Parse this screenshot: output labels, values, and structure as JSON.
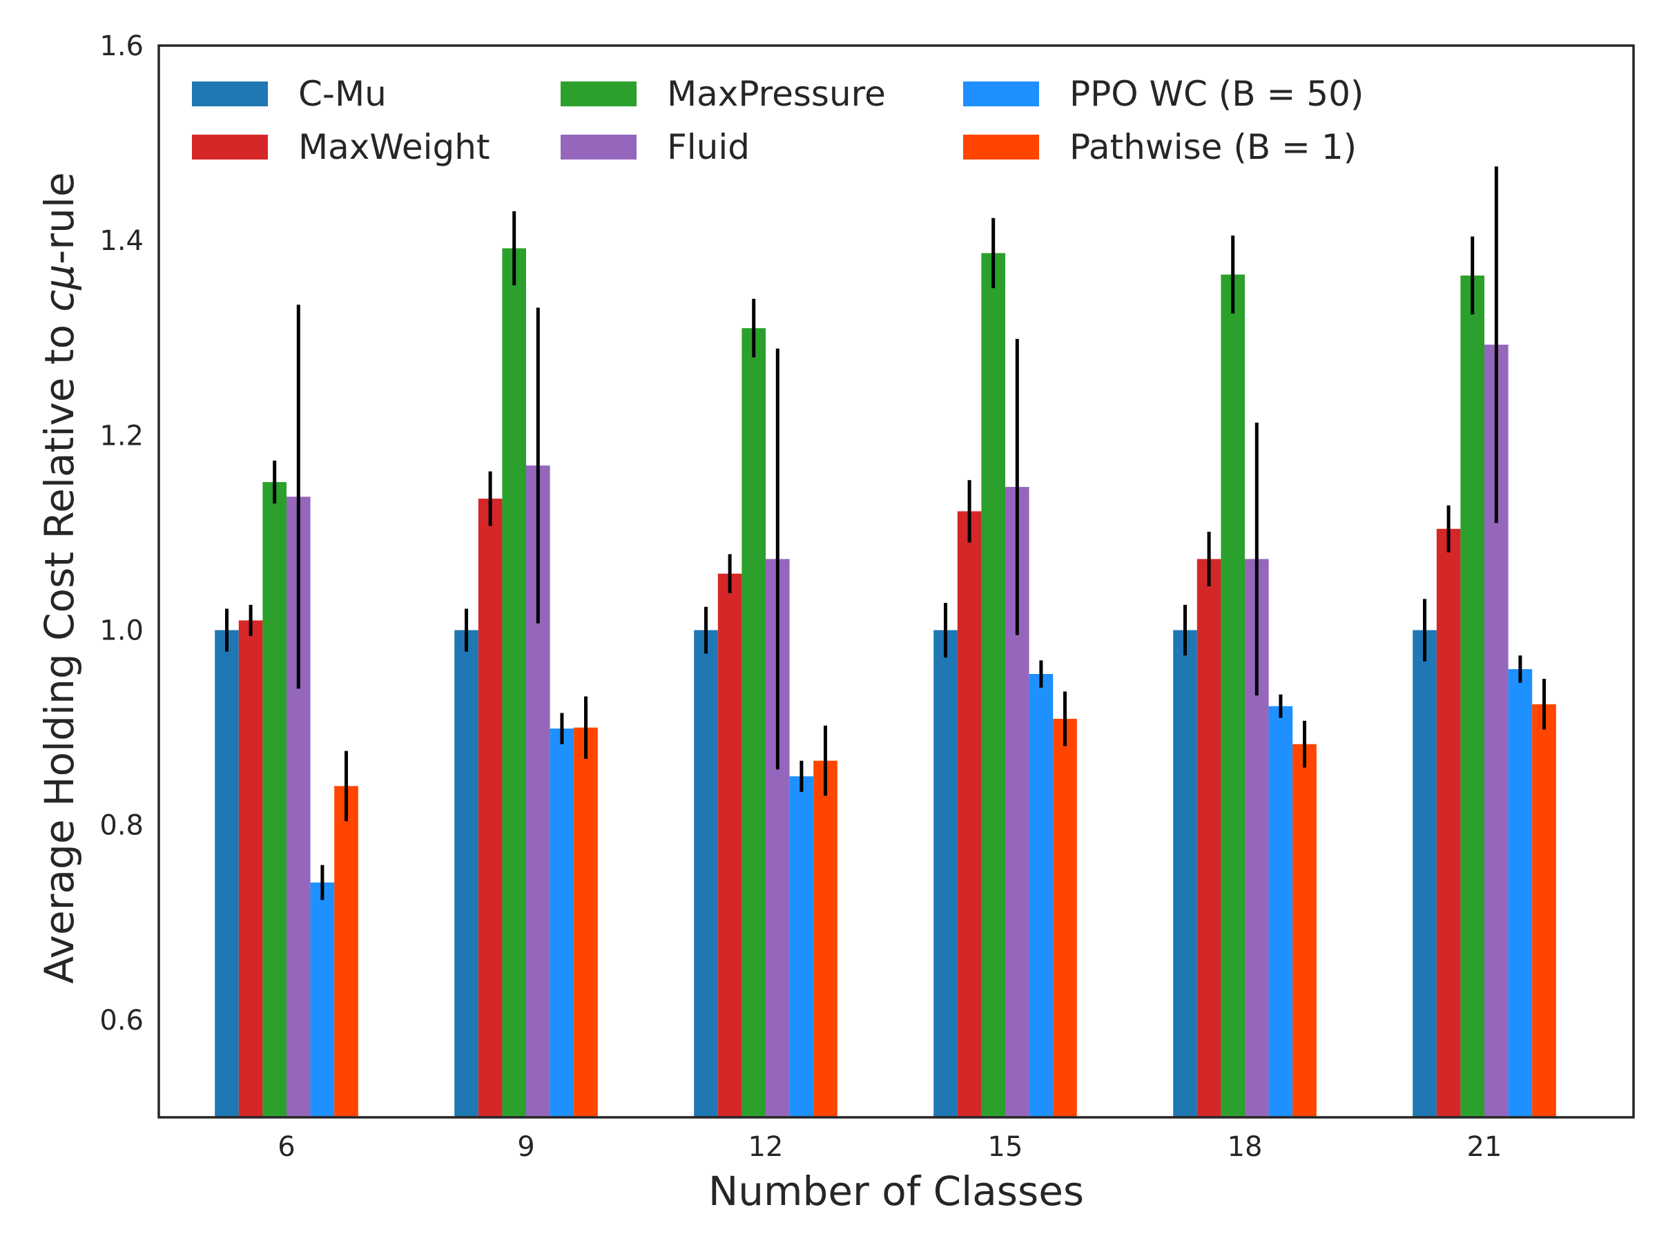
{
  "chart_data": {
    "type": "bar",
    "title": "",
    "xlabel": "Number of Classes",
    "ylabel": "Average Holding Cost Relative to cμ-rule",
    "ylabel_parts": [
      "Average Holding Cost Relative to ",
      "cμ",
      "-rule"
    ],
    "ylim": [
      0.5,
      1.6
    ],
    "yticks": [
      "0.6",
      "0.8",
      "1.0",
      "1.2",
      "1.4",
      "1.6"
    ],
    "categories": [
      "6",
      "9",
      "12",
      "15",
      "18",
      "21"
    ],
    "grid": false,
    "legend_position": "top-left",
    "series": [
      {
        "name": "C-Mu",
        "color": "#1f77b4",
        "values": [
          1.0,
          1.0,
          1.0,
          1.0,
          1.0,
          1.0
        ],
        "errors": [
          0.022,
          0.022,
          0.024,
          0.028,
          0.026,
          0.032
        ]
      },
      {
        "name": "MaxWeight",
        "color": "#d62728",
        "values": [
          1.01,
          1.135,
          1.058,
          1.122,
          1.073,
          1.104
        ],
        "errors": [
          0.016,
          0.028,
          0.02,
          0.032,
          0.028,
          0.024
        ]
      },
      {
        "name": "MaxPressure",
        "color": "#2ca02c",
        "values": [
          1.152,
          1.392,
          1.31,
          1.387,
          1.365,
          1.364
        ],
        "errors": [
          0.022,
          0.038,
          0.03,
          0.036,
          0.04,
          0.04
        ]
      },
      {
        "name": "Fluid",
        "color": "#9467bd",
        "values": [
          1.137,
          1.169,
          1.073,
          1.147,
          1.073,
          1.293
        ],
        "errors": [
          0.197,
          0.162,
          0.216,
          0.152,
          0.14,
          0.183
        ]
      },
      {
        "name": "PPO WC (B = 50)",
        "color": "#1e90ff",
        "values": [
          0.741,
          0.899,
          0.85,
          0.955,
          0.922,
          0.96
        ],
        "errors": [
          0.018,
          0.016,
          0.016,
          0.014,
          0.012,
          0.014
        ]
      },
      {
        "name": "Pathwise (B = 1)",
        "color": "#ff4500",
        "values": [
          0.84,
          0.9,
          0.866,
          0.909,
          0.883,
          0.924
        ],
        "errors": [
          0.036,
          0.032,
          0.036,
          0.028,
          0.024,
          0.026
        ]
      }
    ]
  }
}
